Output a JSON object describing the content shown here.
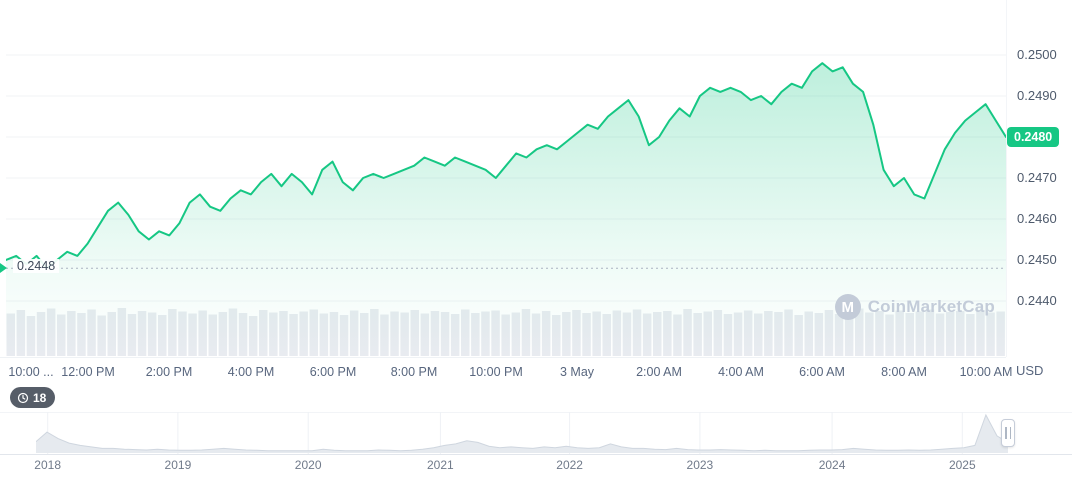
{
  "watermark": {
    "name": "CoinMarketCap",
    "logo_letter": "M"
  },
  "current_price_badge": "0.2480",
  "open_price_label": "0.2448",
  "history_badge": {
    "count": "18"
  },
  "y_axis_unit": "USD",
  "chart_data": {
    "type": "line",
    "unit": "USD",
    "open_price": 0.2448,
    "last_price": 0.248,
    "y_ticks": [
      0.25,
      0.249,
      0.248,
      0.247,
      0.246,
      0.245,
      0.244
    ],
    "y_range": [
      0.244,
      0.25
    ],
    "x_labels": [
      {
        "label": "10:00 ...",
        "pos": 0.025
      },
      {
        "label": "12:00 PM",
        "pos": 0.082
      },
      {
        "label": "2:00 PM",
        "pos": 0.163
      },
      {
        "label": "4:00 PM",
        "pos": 0.245
      },
      {
        "label": "6:00 PM",
        "pos": 0.327
      },
      {
        "label": "8:00 PM",
        "pos": 0.408
      },
      {
        "label": "10:00 PM",
        "pos": 0.49
      },
      {
        "label": "3 May",
        "pos": 0.571
      },
      {
        "label": "2:00 AM",
        "pos": 0.653
      },
      {
        "label": "4:00 AM",
        "pos": 0.735
      },
      {
        "label": "6:00 AM",
        "pos": 0.816
      },
      {
        "label": "8:00 AM",
        "pos": 0.898
      },
      {
        "label": "10:00 AM",
        "pos": 0.98
      }
    ],
    "prices": [
      0.245,
      0.2451,
      0.2449,
      0.2451,
      0.2448,
      0.245,
      0.2452,
      0.2451,
      0.2454,
      0.2458,
      0.2462,
      0.2464,
      0.2461,
      0.2457,
      0.2455,
      0.2457,
      0.2456,
      0.2459,
      0.2464,
      0.2466,
      0.2463,
      0.2462,
      0.2465,
      0.2467,
      0.2466,
      0.2469,
      0.2471,
      0.2468,
      0.2471,
      0.2469,
      0.2466,
      0.2472,
      0.2474,
      0.2469,
      0.2467,
      0.247,
      0.2471,
      0.247,
      0.2471,
      0.2472,
      0.2473,
      0.2475,
      0.2474,
      0.2473,
      0.2475,
      0.2474,
      0.2473,
      0.2472,
      0.247,
      0.2473,
      0.2476,
      0.2475,
      0.2477,
      0.2478,
      0.2477,
      0.2479,
      0.2481,
      0.2483,
      0.2482,
      0.2485,
      0.2487,
      0.2489,
      0.2485,
      0.2478,
      0.248,
      0.2484,
      0.2487,
      0.2485,
      0.249,
      0.2492,
      0.2491,
      0.2492,
      0.2491,
      0.2489,
      0.249,
      0.2488,
      0.2491,
      0.2493,
      0.2492,
      0.2496,
      0.2498,
      0.2496,
      0.2497,
      0.2493,
      0.2491,
      0.2483,
      0.2472,
      0.2468,
      0.247,
      0.2466,
      0.2465,
      0.2471,
      0.2477,
      0.2481,
      0.2484,
      0.2486,
      0.2488,
      0.2484,
      0.248
    ],
    "volume": [
      0.85,
      0.92,
      0.8,
      0.88,
      0.95,
      0.83,
      0.9,
      0.86,
      0.93,
      0.81,
      0.88,
      0.96,
      0.84,
      0.9,
      0.87,
      0.82,
      0.94,
      0.89,
      0.85,
      0.91,
      0.83,
      0.88,
      0.95,
      0.86,
      0.8,
      0.92,
      0.87,
      0.9,
      0.84,
      0.89,
      0.93,
      0.85,
      0.88,
      0.82,
      0.91,
      0.86,
      0.94,
      0.83,
      0.89,
      0.87,
      0.92,
      0.85,
      0.9,
      0.88,
      0.84,
      0.93,
      0.86,
      0.89,
      0.91,
      0.83,
      0.87,
      0.94,
      0.85,
      0.9,
      0.82,
      0.88,
      0.92,
      0.86,
      0.89,
      0.84,
      0.91,
      0.87,
      0.93,
      0.85,
      0.88,
      0.9,
      0.83,
      0.94,
      0.86,
      0.89,
      0.92,
      0.84,
      0.87,
      0.91,
      0.85,
      0.9,
      0.88,
      0.93,
      0.82,
      0.89,
      0.86,
      0.92,
      0.84,
      0.88,
      0.95,
      0.87,
      0.9,
      0.83,
      0.91,
      0.86,
      0.89,
      0.93,
      0.85,
      0.88,
      0.9,
      0.84,
      0.92,
      0.87,
      0.89
    ],
    "navigator": {
      "years": [
        {
          "label": "2018",
          "pos": 0.012
        },
        {
          "label": "2019",
          "pos": 0.146
        },
        {
          "label": "2020",
          "pos": 0.28
        },
        {
          "label": "2021",
          "pos": 0.416
        },
        {
          "label": "2022",
          "pos": 0.549
        },
        {
          "label": "2023",
          "pos": 0.683
        },
        {
          "label": "2024",
          "pos": 0.819
        },
        {
          "label": "2025",
          "pos": 0.953
        }
      ],
      "values": [
        0.3,
        0.55,
        0.38,
        0.26,
        0.2,
        0.16,
        0.12,
        0.12,
        0.1,
        0.09,
        0.08,
        0.1,
        0.08,
        0.07,
        0.07,
        0.08,
        0.1,
        0.12,
        0.1,
        0.08,
        0.07,
        0.06,
        0.06,
        0.06,
        0.06,
        0.06,
        0.1,
        0.07,
        0.06,
        0.06,
        0.06,
        0.08,
        0.07,
        0.06,
        0.07,
        0.1,
        0.14,
        0.2,
        0.24,
        0.32,
        0.28,
        0.18,
        0.14,
        0.16,
        0.14,
        0.12,
        0.16,
        0.14,
        0.18,
        0.14,
        0.12,
        0.14,
        0.24,
        0.16,
        0.12,
        0.12,
        0.1,
        0.09,
        0.12,
        0.09,
        0.08,
        0.08,
        0.09,
        0.08,
        0.07,
        0.06,
        0.07,
        0.06,
        0.06,
        0.06,
        0.07,
        0.08,
        0.08,
        0.09,
        0.12,
        0.1,
        0.08,
        0.07,
        0.07,
        0.08,
        0.07,
        0.08,
        0.1,
        0.12,
        0.14,
        0.2,
        1.0,
        0.45,
        0.28
      ]
    },
    "style": {
      "line": "#16c784",
      "grid": "#f1f3f6",
      "volume": "#e8ebf0",
      "nav_fill": "#e6eaef",
      "nav_stroke": "#cfd6df",
      "nav_grid": "#eef1f5",
      "dotted": "#aab3c2",
      "badge_bg": "#16c784",
      "history_badge_bg": "#565d68"
    }
  }
}
